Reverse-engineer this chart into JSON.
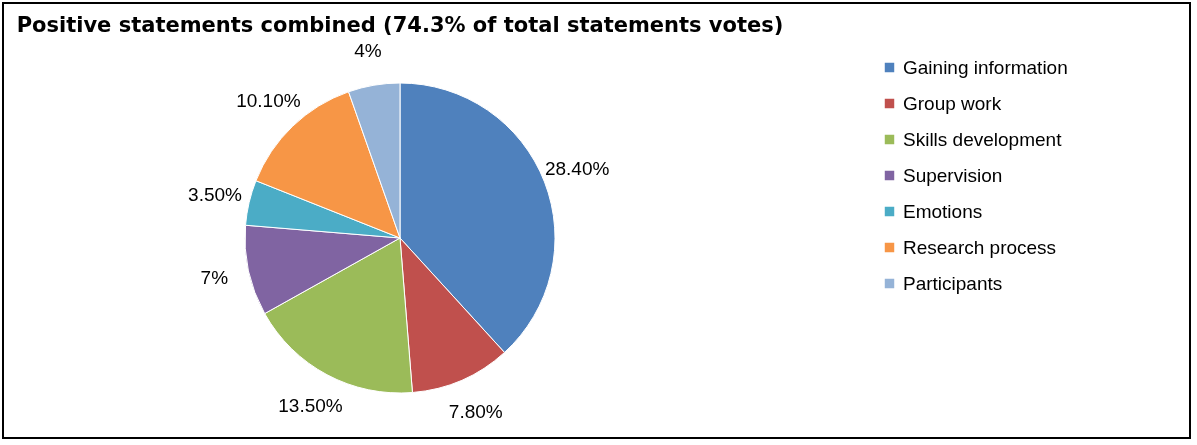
{
  "chart_data": {
    "type": "pie",
    "title": "Positive statements combined (74.3% of total statements votes)",
    "categories": [
      "Gaining information",
      "Group work",
      "Skills development",
      "Supervision",
      "Emotions",
      "Research process",
      "Participants"
    ],
    "values": [
      28.4,
      7.8,
      13.5,
      7,
      3.5,
      10.1,
      4
    ],
    "value_labels": [
      "28.40%",
      "7.80%",
      "13.50%",
      "7%",
      "3.50%",
      "10.10%",
      "4%"
    ],
    "colors": [
      "#4f81bd",
      "#c0504d",
      "#9bbb59",
      "#8064a2",
      "#4bacc6",
      "#f79646",
      "#95b3d7"
    ],
    "legend": "right"
  }
}
